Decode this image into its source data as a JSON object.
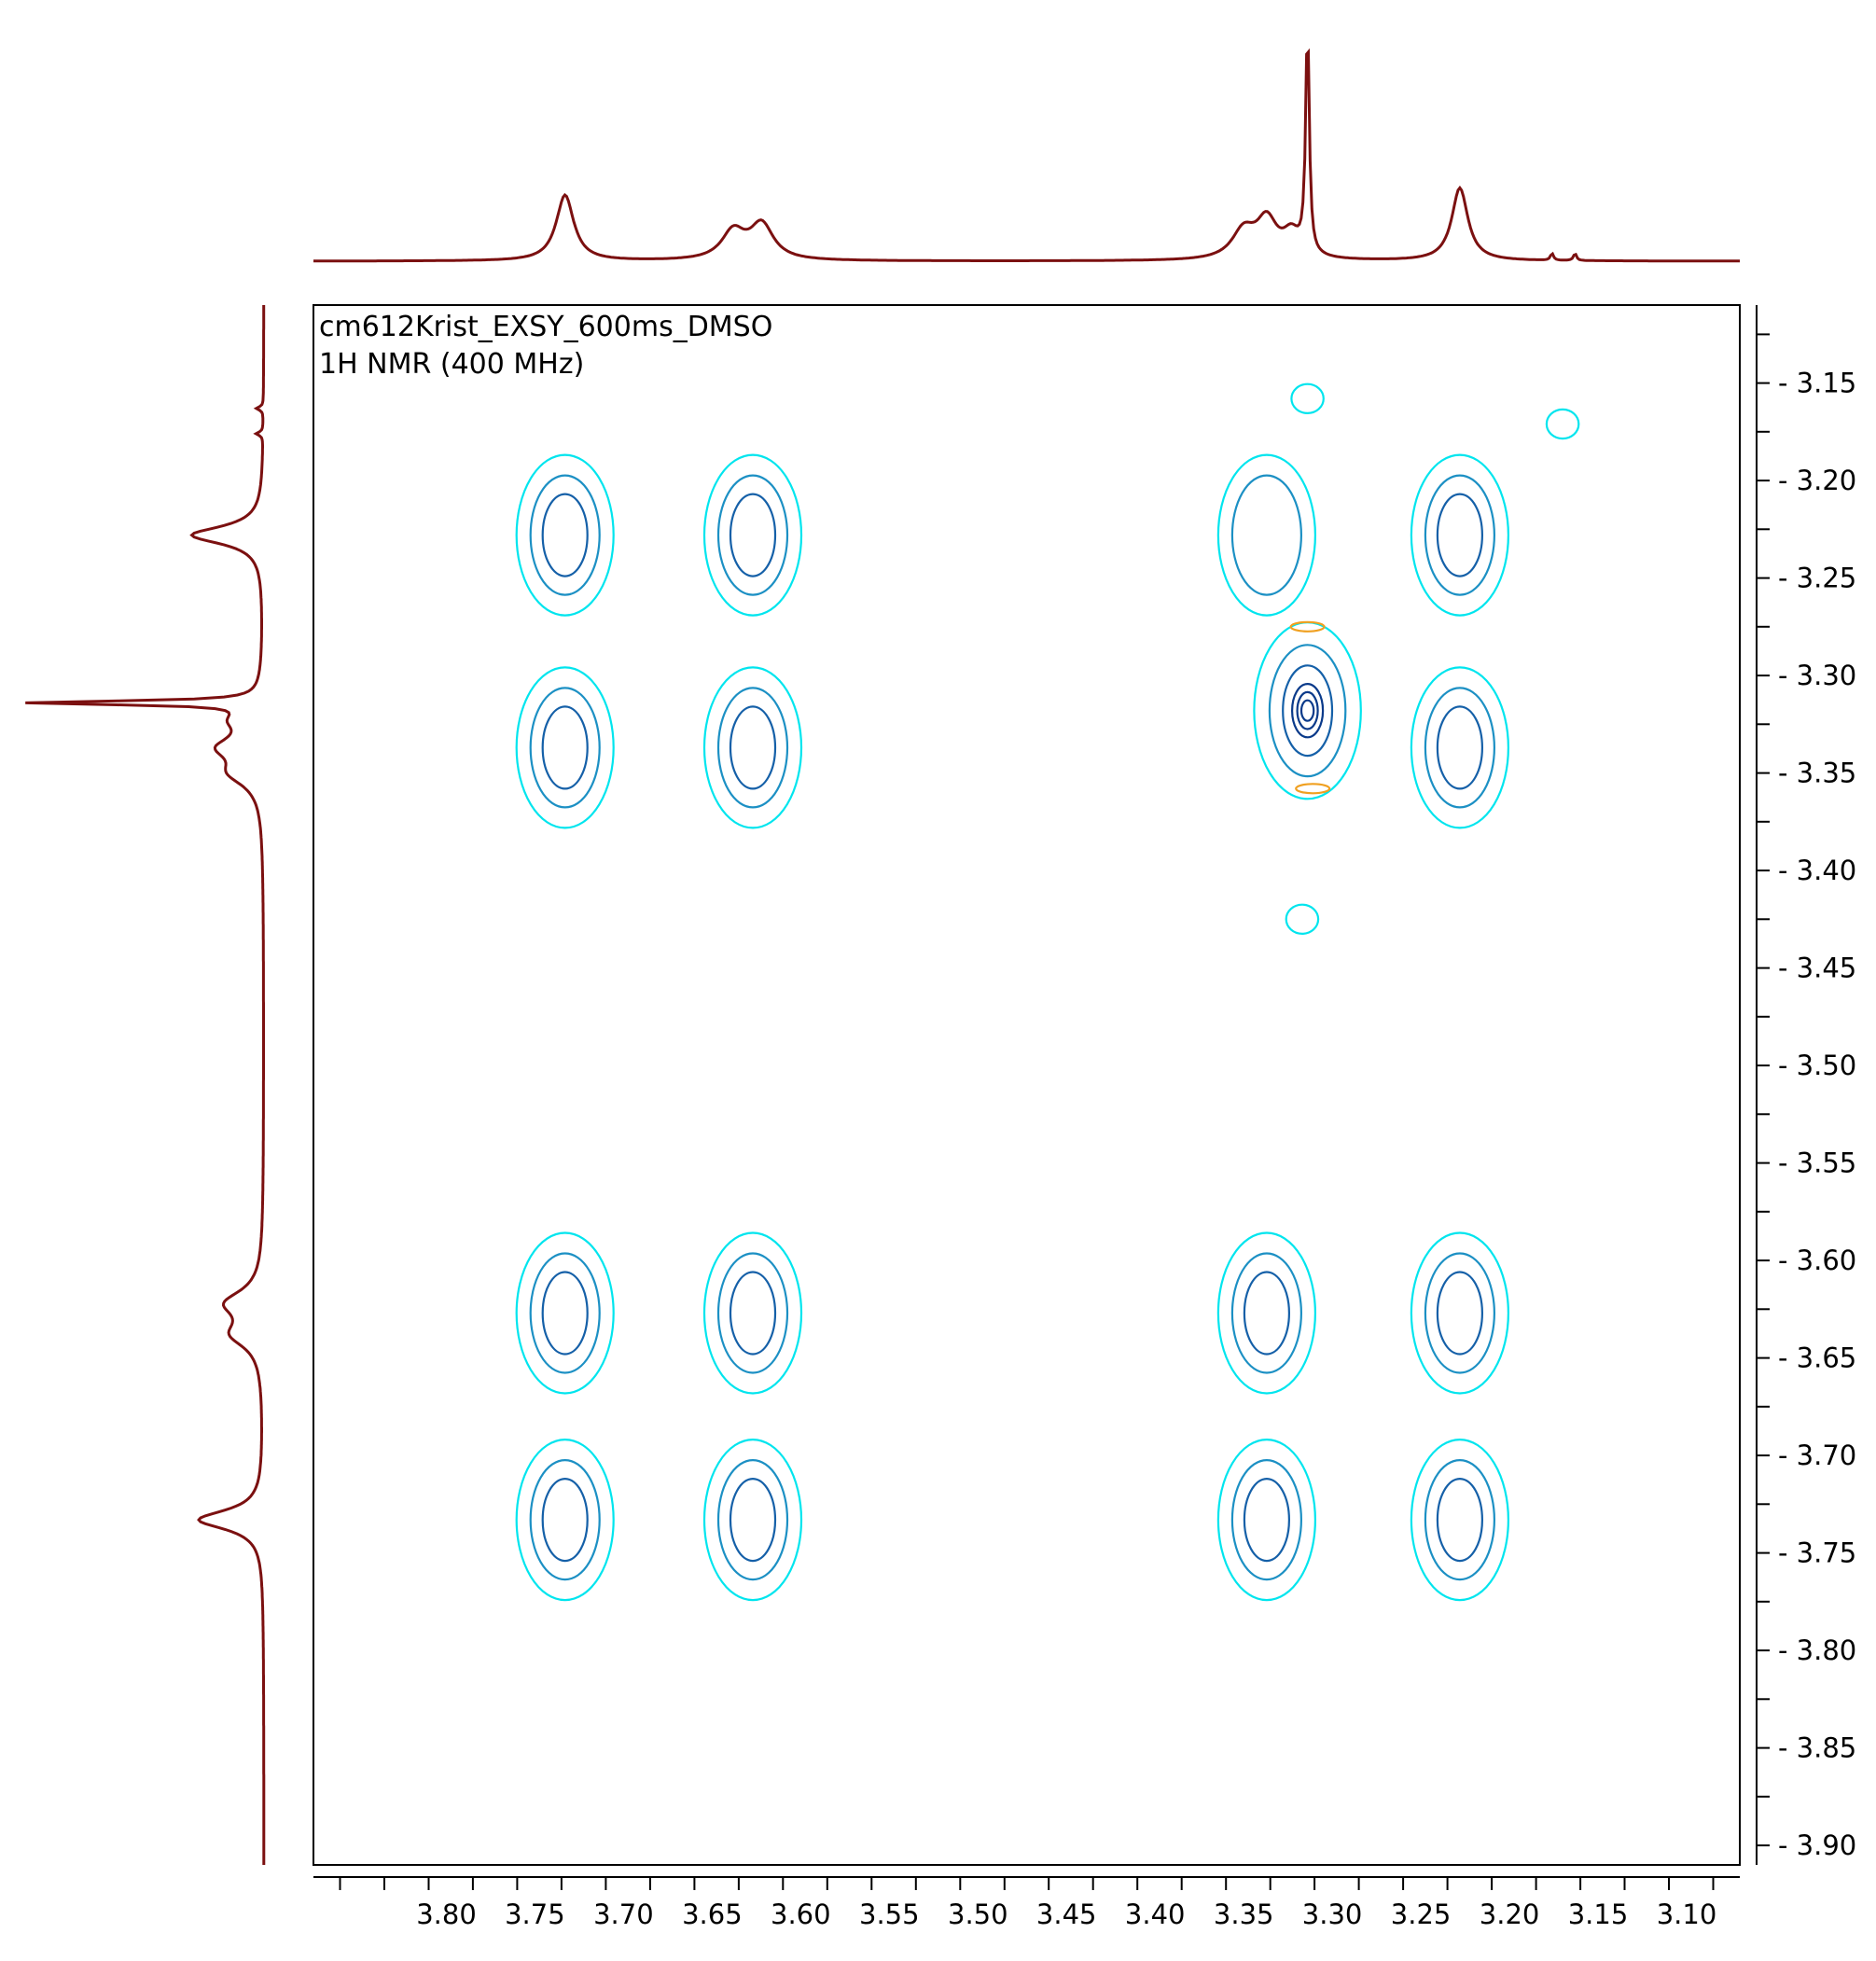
{
  "chart_data": {
    "type": "contour",
    "title": "cm612Krist_EXSY_600ms_DMSO",
    "subtitle": "1H NMR (400 MHz)",
    "xlabel": "",
    "ylabel": "",
    "xlim": [
      3.875,
      3.07
    ],
    "ylim": [
      3.11,
      3.91
    ],
    "x_reversed": true,
    "y_reversed": true,
    "x_ticks": [
      "3.80",
      "3.75",
      "3.70",
      "3.65",
      "3.60",
      "3.55",
      "3.50",
      "3.45",
      "3.40",
      "3.35",
      "3.30",
      "3.25",
      "3.20",
      "3.15",
      "3.10"
    ],
    "y_ticks": [
      "3.15",
      "3.20",
      "3.25",
      "3.30",
      "3.35",
      "3.40",
      "3.45",
      "3.50",
      "3.55",
      "3.60",
      "3.65",
      "3.70",
      "3.75",
      "3.80",
      "3.85",
      "3.90"
    ],
    "grid": false,
    "colors": {
      "projection": "#7b1010",
      "contour_levels": [
        "#00e5ee",
        "#1c90c4",
        "#1560a8",
        "#0a3a8a"
      ],
      "negative_contour": "#f0a020",
      "frame": "#000000"
    },
    "top_projection": {
      "peaks": [
        {
          "ppm": 3.733,
          "height": 0.28,
          "width": 0.006
        },
        {
          "ppm": 3.638,
          "height": 0.12,
          "width": 0.008
        },
        {
          "ppm": 3.622,
          "height": 0.15,
          "width": 0.008
        },
        {
          "ppm": 3.35,
          "height": 0.12,
          "width": 0.008
        },
        {
          "ppm": 3.337,
          "height": 0.16,
          "width": 0.007
        },
        {
          "ppm": 3.323,
          "height": 0.1,
          "width": 0.006
        },
        {
          "ppm": 3.314,
          "height": 0.98,
          "width": 0.0012
        },
        {
          "ppm": 3.228,
          "height": 0.31,
          "width": 0.0055
        },
        {
          "ppm": 3.176,
          "height": 0.03,
          "width": 0.001
        },
        {
          "ppm": 3.163,
          "height": 0.03,
          "width": 0.001
        }
      ]
    },
    "left_projection": {
      "peaks": [
        {
          "ppm": 3.733,
          "height": 0.28,
          "width": 0.006
        },
        {
          "ppm": 3.638,
          "height": 0.12,
          "width": 0.008
        },
        {
          "ppm": 3.622,
          "height": 0.15,
          "width": 0.008
        },
        {
          "ppm": 3.35,
          "height": 0.12,
          "width": 0.008
        },
        {
          "ppm": 3.337,
          "height": 0.16,
          "width": 0.007
        },
        {
          "ppm": 3.323,
          "height": 0.1,
          "width": 0.006
        },
        {
          "ppm": 3.314,
          "height": 0.98,
          "width": 0.0012
        },
        {
          "ppm": 3.228,
          "height": 0.31,
          "width": 0.0055
        },
        {
          "ppm": 3.176,
          "height": 0.03,
          "width": 0.001
        },
        {
          "ppm": 3.163,
          "height": 0.03,
          "width": 0.001
        }
      ]
    },
    "cross_peaks": [
      {
        "x": 3.733,
        "y": 3.228,
        "levels": 3
      },
      {
        "x": 3.627,
        "y": 3.228,
        "levels": 3
      },
      {
        "x": 3.337,
        "y": 3.228,
        "levels": 2
      },
      {
        "x": 3.228,
        "y": 3.228,
        "levels": 3
      },
      {
        "x": 3.733,
        "y": 3.337,
        "levels": 3
      },
      {
        "x": 3.627,
        "y": 3.337,
        "levels": 3
      },
      {
        "x": 3.314,
        "y": 3.318,
        "levels": 6
      },
      {
        "x": 3.228,
        "y": 3.337,
        "levels": 3
      },
      {
        "x": 3.733,
        "y": 3.627,
        "levels": 3
      },
      {
        "x": 3.627,
        "y": 3.627,
        "levels": 3
      },
      {
        "x": 3.337,
        "y": 3.627,
        "levels": 3
      },
      {
        "x": 3.228,
        "y": 3.627,
        "levels": 3
      },
      {
        "x": 3.733,
        "y": 3.733,
        "levels": 3
      },
      {
        "x": 3.627,
        "y": 3.733,
        "levels": 3
      },
      {
        "x": 3.337,
        "y": 3.733,
        "levels": 3
      },
      {
        "x": 3.228,
        "y": 3.733,
        "levels": 3
      },
      {
        "x": 3.314,
        "y": 3.158,
        "levels": 1
      },
      {
        "x": 3.17,
        "y": 3.171,
        "levels": 1
      },
      {
        "x": 3.317,
        "y": 3.425,
        "levels": 1
      }
    ],
    "negative_peaks": [
      {
        "x": 3.314,
        "y": 3.275
      },
      {
        "x": 3.311,
        "y": 3.358
      }
    ]
  }
}
